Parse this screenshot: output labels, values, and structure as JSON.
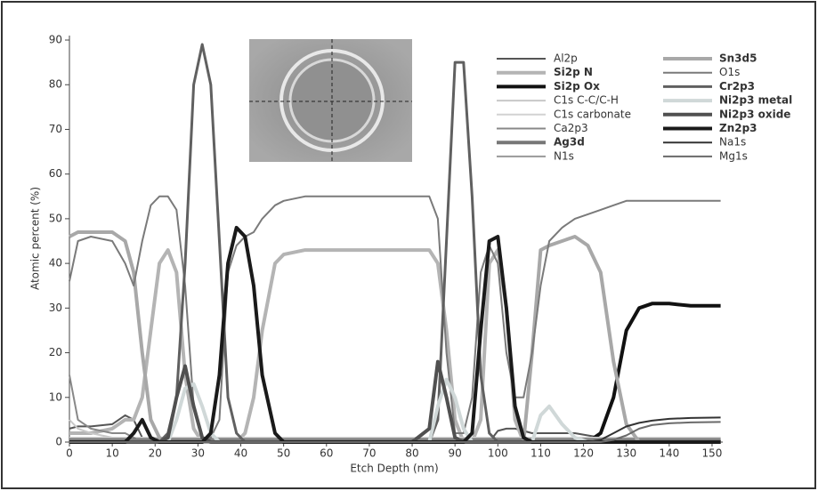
{
  "chart_data": {
    "type": "line",
    "x_label": "Etch Depth (nm)",
    "y_label": "Atomic percent (%)",
    "xlim": [
      0,
      152.5
    ],
    "ylim": [
      0,
      91
    ],
    "xticks": [
      0,
      10,
      20,
      30,
      40,
      50,
      60,
      70,
      80,
      90,
      100,
      110,
      120,
      130,
      140,
      150
    ],
    "yticks": [
      0,
      10,
      20,
      30,
      40,
      50,
      60,
      70,
      80,
      90
    ],
    "grid": false,
    "x": [
      0,
      2,
      5,
      10,
      13,
      15,
      17,
      19,
      21,
      23,
      25,
      27,
      29,
      31,
      33,
      35,
      37,
      39,
      41,
      43,
      45,
      48,
      50,
      55,
      60,
      70,
      80,
      84,
      86,
      88,
      90,
      92,
      94,
      96,
      98,
      100,
      102,
      104,
      106,
      108,
      110,
      112,
      115,
      118,
      121,
      124,
      127,
      130,
      133,
      136,
      140,
      145,
      152
    ],
    "series": [
      {
        "name": "Al2p",
        "color": "#555555",
        "line_width": 2,
        "values": [
          3,
          3.5,
          3.5,
          4,
          6,
          5,
          1,
          0,
          0,
          0,
          0,
          0,
          0,
          0,
          0,
          0,
          0,
          0,
          0,
          0,
          0,
          0,
          0,
          0,
          0,
          0,
          0,
          0,
          0,
          0,
          0,
          0,
          0,
          0,
          0,
          2.5,
          3,
          3,
          2.5,
          2,
          2,
          2,
          2,
          2,
          1.5,
          1,
          0.5,
          0,
          0,
          0,
          0,
          0,
          0
        ]
      },
      {
        "name": "Si2p N",
        "color": "#b4b4b4",
        "line_width": 4,
        "values": [
          2,
          2,
          2,
          3,
          5,
          5,
          10,
          25,
          40,
          43,
          38,
          15,
          3,
          0,
          0,
          0,
          0,
          0,
          2,
          10,
          25,
          40,
          42,
          43,
          43,
          43,
          43,
          43,
          40,
          25,
          5,
          0,
          0,
          5,
          40,
          43,
          30,
          5,
          0,
          0,
          0,
          0,
          0,
          0,
          0,
          0,
          0,
          0,
          0,
          0,
          0,
          0,
          0
        ]
      },
      {
        "name": "Si2p Ox",
        "color": "#111111",
        "line_width": 4,
        "values": [
          0,
          0,
          0,
          0,
          0,
          0,
          0,
          0,
          0,
          0,
          0,
          0,
          0,
          0,
          0,
          0,
          0,
          0,
          0,
          0,
          0,
          0,
          0,
          0,
          0,
          0,
          0,
          0,
          0,
          0,
          0,
          0,
          0,
          0,
          0,
          0,
          0,
          0,
          0,
          0,
          0,
          0,
          0,
          0,
          0,
          2,
          10,
          25,
          30,
          31,
          31,
          30.5,
          30.5
        ]
      },
      {
        "name": "C1s C-C/C-H",
        "color": "#c8c8c8",
        "line_width": 2,
        "values": [
          5,
          3,
          2,
          1,
          1,
          0.5,
          0.5,
          0.5,
          0.5,
          0.5,
          0.5,
          0.5,
          0.5,
          0.5,
          0.5,
          0.5,
          0.5,
          0.5,
          0.5,
          0.5,
          0.5,
          0.5,
          0.5,
          0.5,
          0.5,
          0.5,
          0.5,
          0.5,
          0.5,
          0.5,
          0.5,
          0.5,
          0.5,
          0.5,
          0.5,
          0.5,
          0.5,
          0.5,
          0.5,
          0.5,
          0.5,
          0.5,
          0.5,
          0.5,
          0.5,
          0.5,
          0.5,
          0.5,
          0.5,
          0.5,
          0.5,
          0.5,
          0.5
        ]
      },
      {
        "name": "C1s carbonate",
        "color": "#d2d2d2",
        "line_width": 2,
        "values": [
          1,
          1,
          1,
          1,
          1,
          1,
          1,
          1,
          1,
          1,
          1,
          1,
          1,
          1,
          1,
          1,
          1,
          1,
          1,
          1,
          1,
          1,
          1,
          1,
          1,
          1,
          1,
          1,
          1,
          1,
          1,
          1,
          1,
          1,
          1,
          1,
          1,
          1,
          1,
          1,
          1,
          1,
          1,
          1,
          1,
          1,
          1,
          1,
          1,
          1,
          1,
          1,
          1
        ]
      },
      {
        "name": "Ca2p3",
        "color": "#888888",
        "line_width": 2,
        "values": [
          15,
          5,
          3,
          2,
          2,
          1,
          0,
          0,
          0,
          0,
          0,
          0,
          0,
          0,
          0,
          0,
          0,
          0,
          0,
          0,
          0,
          0,
          0,
          0,
          0,
          0,
          0,
          0,
          0,
          0,
          0,
          0,
          0,
          0,
          0,
          0,
          0,
          0,
          0,
          0,
          0,
          0,
          0,
          0,
          0,
          0,
          0,
          0,
          0,
          0,
          0,
          0,
          0
        ]
      },
      {
        "name": "Ag3d",
        "color": "#777777",
        "line_width": 4,
        "values": [
          0.5,
          0.5,
          0.5,
          0.5,
          0.5,
          0.5,
          0.5,
          0.5,
          0.5,
          0.5,
          0.5,
          0.5,
          0.5,
          0.5,
          0.5,
          0.5,
          0.5,
          0.5,
          0.5,
          0.5,
          0.5,
          0.5,
          0.5,
          0.5,
          0.5,
          0.5,
          0.5,
          0.5,
          0.5,
          0.5,
          0.5,
          0.5,
          0.5,
          0.5,
          0.5,
          0.5,
          0.5,
          0.5,
          0.5,
          0.5,
          0.5,
          0.5,
          0.5,
          0.5,
          0.5,
          0.5,
          0.5,
          0.5,
          0.5,
          0.5,
          0.5,
          0.5,
          0.5
        ]
      },
      {
        "name": "N1s",
        "color": "#999999",
        "line_width": 2,
        "values": [
          0.3,
          0.3,
          0.3,
          0.3,
          0.3,
          0.3,
          0.3,
          0.3,
          0.3,
          0.3,
          0.3,
          0.3,
          0.3,
          0.3,
          0.3,
          0.3,
          0.3,
          0.3,
          0.3,
          0.3,
          0.3,
          0.3,
          0.3,
          0.3,
          0.3,
          0.3,
          0.3,
          0.3,
          0.3,
          0.3,
          0.3,
          0.3,
          0.3,
          0.3,
          0.3,
          0.3,
          0.3,
          0.3,
          0.3,
          0.3,
          0.3,
          0.3,
          0.3,
          0.3,
          0.3,
          0.3,
          0.3,
          0.3,
          0.3,
          0.3,
          0.3,
          0.3,
          0.3
        ]
      },
      {
        "name": "Sn3d5",
        "color": "#a8a8a8",
        "line_width": 4,
        "values": [
          46,
          47,
          47,
          47,
          45,
          38,
          20,
          5,
          1,
          0,
          0,
          0,
          0,
          0,
          0,
          0,
          0,
          0,
          0,
          0,
          0,
          0,
          0,
          0,
          0,
          0,
          0,
          0,
          0,
          0,
          0,
          0,
          0,
          0,
          0,
          0,
          0,
          0,
          0,
          20,
          43,
          44,
          45,
          46,
          44,
          38,
          18,
          4,
          0,
          0,
          0,
          0,
          0
        ]
      },
      {
        "name": "O1s",
        "color": "#7a7a7a",
        "line_width": 2,
        "values": [
          36,
          45,
          46,
          45,
          40,
          35,
          45,
          53,
          55,
          55,
          52,
          35,
          8,
          1,
          1,
          5,
          38,
          44,
          46,
          47,
          50,
          53,
          54,
          55,
          55,
          55,
          55,
          55,
          50,
          20,
          2,
          2,
          10,
          38,
          44,
          40,
          20,
          10,
          10,
          20,
          35,
          45,
          48,
          50,
          51,
          52,
          53,
          54,
          54,
          54,
          54,
          54,
          54
        ]
      },
      {
        "name": "Cr2p3",
        "color": "#606060",
        "line_width": 3,
        "values": [
          0,
          0,
          0,
          0,
          0,
          0,
          0,
          0,
          0,
          2,
          10,
          40,
          80,
          89,
          80,
          45,
          10,
          2,
          0,
          0,
          0,
          0,
          0,
          0,
          0,
          0,
          0,
          0,
          5,
          45,
          85,
          85,
          55,
          15,
          2,
          0,
          0,
          0,
          0,
          0,
          0,
          0,
          0,
          0,
          0,
          0,
          0,
          0,
          0,
          0,
          0,
          0,
          0
        ]
      },
      {
        "name": "Ni2p3 metal",
        "color": "#d0d8d8",
        "line_width": 4,
        "values": [
          0,
          0,
          0,
          0,
          0,
          0,
          0,
          0,
          0,
          0,
          5,
          12,
          13,
          8,
          2,
          0,
          0,
          0,
          0,
          0,
          0,
          0,
          0,
          0,
          0,
          0,
          0,
          0,
          8,
          14,
          10,
          3,
          0,
          0,
          0,
          0,
          0,
          0,
          0,
          0,
          6,
          8,
          4,
          1,
          0,
          0,
          0,
          0,
          0,
          0,
          0,
          0,
          0
        ]
      },
      {
        "name": "Ni2p3 oxide",
        "color": "#505050",
        "line_width": 4,
        "values": [
          0,
          0,
          0,
          0,
          0,
          0,
          0,
          0,
          0,
          1,
          10,
          17,
          8,
          1,
          0,
          0,
          0,
          0,
          0,
          0,
          0,
          0,
          0,
          0,
          0,
          0,
          0,
          3,
          18,
          10,
          1,
          0,
          0,
          0,
          0,
          0,
          0,
          0,
          0,
          0,
          0,
          0,
          0,
          0,
          0,
          0,
          0,
          0,
          0,
          0,
          0,
          0,
          0
        ]
      },
      {
        "name": "Zn2p3",
        "color": "#1a1a1a",
        "line_width": 4,
        "values": [
          0,
          0,
          0,
          0,
          0,
          2,
          5,
          1,
          0,
          0,
          0,
          0,
          0,
          0,
          2,
          15,
          40,
          48,
          46,
          35,
          15,
          2,
          0,
          0,
          0,
          0,
          0,
          0,
          0,
          0,
          0,
          0,
          2,
          25,
          45,
          46,
          30,
          8,
          1,
          0,
          0,
          0,
          0,
          0,
          0,
          0,
          0,
          0,
          0,
          0,
          0,
          0,
          0
        ]
      },
      {
        "name": "Na1s",
        "color": "#333333",
        "line_width": 2,
        "values": [
          0,
          0,
          0,
          0,
          0,
          0,
          0,
          0,
          0,
          0,
          0,
          0,
          0,
          0,
          0,
          0,
          0,
          0,
          0,
          0,
          0,
          0,
          0,
          0,
          0,
          0,
          0,
          0,
          0,
          0,
          0,
          0,
          0,
          0,
          0,
          0,
          0,
          0,
          0,
          0,
          0,
          0,
          0,
          0,
          0,
          0.5,
          2,
          3.5,
          4.3,
          4.8,
          5.2,
          5.4,
          5.5
        ]
      },
      {
        "name": "Mg1s",
        "color": "#6a6a6a",
        "line_width": 2,
        "values": [
          0,
          0,
          0,
          0,
          0,
          0,
          0,
          0,
          0,
          0,
          0,
          0,
          0,
          0,
          0,
          0,
          0,
          0,
          0,
          0,
          0,
          0,
          0,
          0,
          0,
          0,
          0,
          0,
          0,
          0,
          0,
          0,
          0,
          0,
          0,
          0,
          0,
          0,
          0,
          0,
          0,
          0,
          0,
          0,
          0,
          0,
          0.5,
          1.5,
          3,
          3.8,
          4.2,
          4.4,
          4.5
        ]
      }
    ]
  }
}
